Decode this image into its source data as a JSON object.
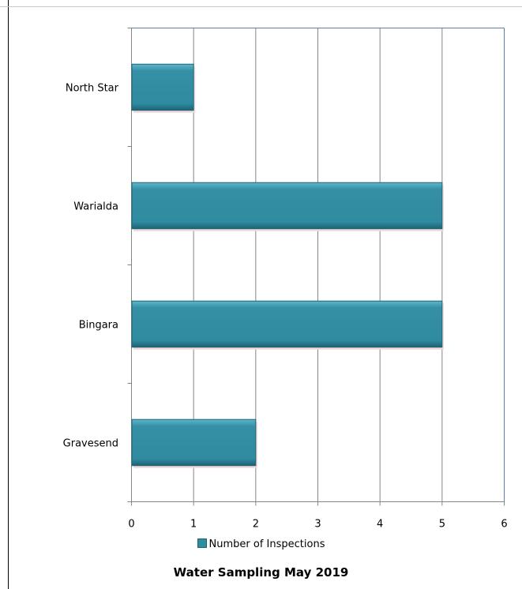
{
  "chart_data": {
    "type": "bar",
    "orientation": "horizontal",
    "title": "Water Sampling May 2019",
    "categories": [
      "North Star",
      "Warialda",
      "Bingara",
      "Gravesend"
    ],
    "series": [
      {
        "name": "Number of Inspections",
        "values": [
          1,
          5,
          5,
          2
        ]
      }
    ],
    "xlim": [
      0,
      6
    ],
    "x_ticks": [
      0,
      1,
      2,
      3,
      4,
      5,
      6
    ],
    "grid": "vertical",
    "legend_position": "bottom",
    "bar_color": "#2f8ba0",
    "bar_edge_color": "#1f6676"
  }
}
